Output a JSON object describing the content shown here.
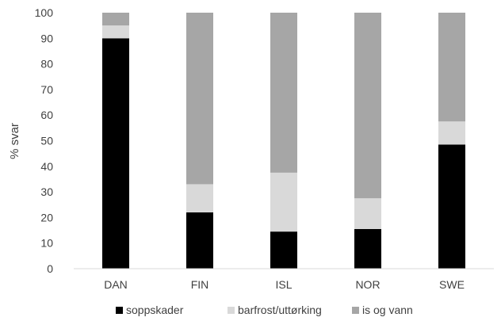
{
  "chart_data": {
    "type": "bar",
    "stacked": true,
    "categories": [
      "DAN",
      "FIN",
      "ISL",
      "NOR",
      "SWE"
    ],
    "series": [
      {
        "name": "soppskader",
        "color": "#000000",
        "values": [
          90,
          22,
          14.5,
          15.5,
          48.5
        ]
      },
      {
        "name": "barfrost/uttørking",
        "color": "#d9d9d9",
        "values": [
          5,
          11,
          23,
          12,
          9
        ]
      },
      {
        "name": "is og vann",
        "color": "#a6a6a6",
        "values": [
          5,
          67,
          62.5,
          72.5,
          42.5
        ]
      }
    ],
    "ylabel": "% svar",
    "xlabel": "",
    "ylim": [
      0,
      100
    ],
    "yticks": [
      0,
      10,
      20,
      30,
      40,
      50,
      60,
      70,
      80,
      90,
      100
    ],
    "grid": false,
    "legend": "bottom"
  }
}
